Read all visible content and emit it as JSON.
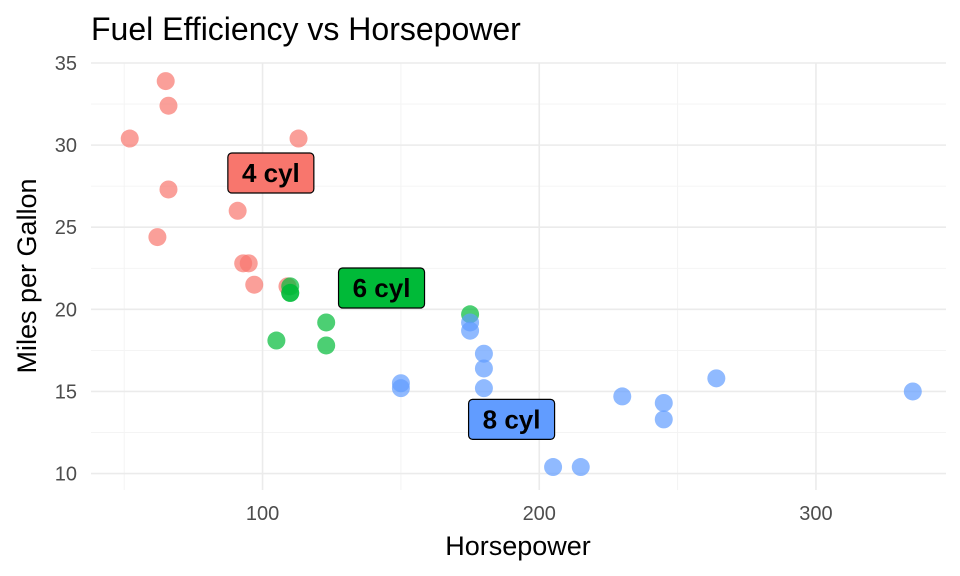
{
  "chart_data": {
    "type": "scatter",
    "title": "Fuel Efficiency vs Horsepower",
    "xlabel": "Horsepower",
    "ylabel": "Miles per Gallon",
    "xlim": [
      38,
      347
    ],
    "ylim": [
      9,
      35
    ],
    "x_ticks": [
      100,
      200,
      300
    ],
    "y_ticks": [
      10,
      15,
      20,
      25,
      30,
      35
    ],
    "x_minor_ticks": [
      50,
      150,
      250
    ],
    "y_minor_ticks": [
      12.5,
      17.5,
      22.5,
      27.5,
      32.5
    ],
    "grid": true,
    "legend": "none",
    "series": [
      {
        "name": "4 cyl",
        "color": "#f8766d",
        "points": [
          {
            "x": 93,
            "y": 22.8
          },
          {
            "x": 62,
            "y": 24.4
          },
          {
            "x": 95,
            "y": 22.8
          },
          {
            "x": 66,
            "y": 32.4
          },
          {
            "x": 52,
            "y": 30.4
          },
          {
            "x": 65,
            "y": 33.9
          },
          {
            "x": 97,
            "y": 21.5
          },
          {
            "x": 66,
            "y": 27.3
          },
          {
            "x": 91,
            "y": 26.0
          },
          {
            "x": 113,
            "y": 30.4
          },
          {
            "x": 109,
            "y": 21.4
          }
        ]
      },
      {
        "name": "6 cyl",
        "color": "#00ba38",
        "points": [
          {
            "x": 110,
            "y": 21.0
          },
          {
            "x": 110,
            "y": 21.0
          },
          {
            "x": 110,
            "y": 21.4
          },
          {
            "x": 105,
            "y": 18.1
          },
          {
            "x": 123,
            "y": 19.2
          },
          {
            "x": 123,
            "y": 17.8
          },
          {
            "x": 175,
            "y": 19.7
          }
        ]
      },
      {
        "name": "8 cyl",
        "color": "#619cff",
        "points": [
          {
            "x": 175,
            "y": 18.7
          },
          {
            "x": 245,
            "y": 14.3
          },
          {
            "x": 180,
            "y": 16.4
          },
          {
            "x": 180,
            "y": 17.3
          },
          {
            "x": 180,
            "y": 15.2
          },
          {
            "x": 205,
            "y": 10.4
          },
          {
            "x": 215,
            "y": 10.4
          },
          {
            "x": 230,
            "y": 14.7
          },
          {
            "x": 150,
            "y": 15.5
          },
          {
            "x": 150,
            "y": 15.2
          },
          {
            "x": 245,
            "y": 13.3
          },
          {
            "x": 175,
            "y": 19.2
          },
          {
            "x": 264,
            "y": 15.8
          },
          {
            "x": 335,
            "y": 15.0
          }
        ]
      }
    ],
    "group_labels": [
      {
        "text": "4 cyl",
        "x": 103,
        "y": 28.3,
        "fill": "#f8766d"
      },
      {
        "text": "6 cyl",
        "x": 143,
        "y": 21.3,
        "fill": "#00ba38"
      },
      {
        "text": "8 cyl",
        "x": 190,
        "y": 13.3,
        "fill": "#619cff"
      }
    ]
  }
}
